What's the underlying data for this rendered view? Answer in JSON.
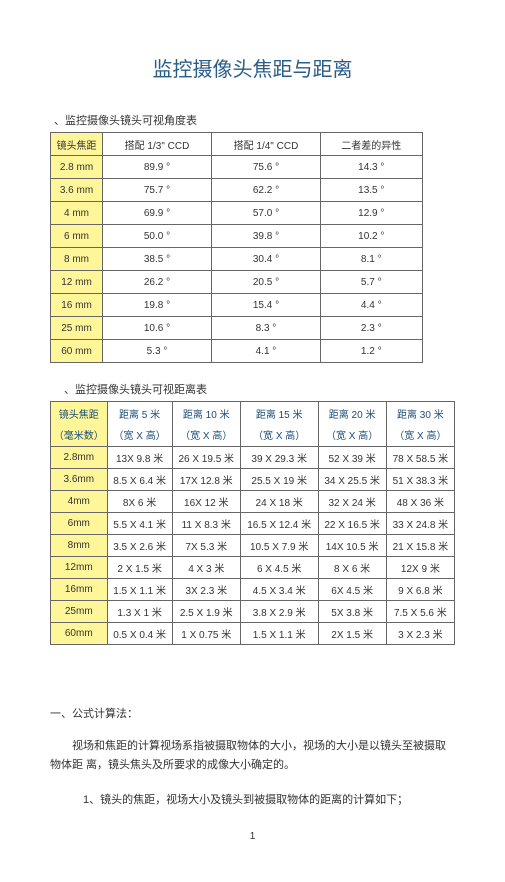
{
  "title": "监控摄像头焦距与距离",
  "caption1": "、监控摄像头镜头可视角度表",
  "table1": {
    "headers": [
      "镜头焦距",
      "搭配 1/3\" CCD",
      "搭配 1/4\" CCD",
      "二者差的异性"
    ],
    "rows": [
      [
        "2.8 mm",
        "89.9 °",
        "75.6 °",
        "14.3 °"
      ],
      [
        "3.6 mm",
        "75.7 °",
        "62.2 °",
        "13.5 °"
      ],
      [
        "4 mm",
        "69.9 °",
        "57.0 °",
        "12.9 °"
      ],
      [
        "6 mm",
        "50.0 °",
        "39.8 °",
        "10.2 °"
      ],
      [
        "8 mm",
        "38.5 °",
        "30.4 °",
        "8.1 °"
      ],
      [
        "12 mm",
        "26.2 °",
        "20.5 °",
        "5.7 °"
      ],
      [
        "16 mm",
        "19.8 °",
        "15.4 °",
        "4.4 °"
      ],
      [
        "25 mm",
        "10.6 °",
        "8.3 °",
        "2.3 °"
      ],
      [
        "60 mm",
        "5.3 °",
        "4.1 °",
        "1.2 °"
      ]
    ]
  },
  "caption2": "、监控摄像头镜头可视距离表",
  "table2": {
    "headers": [
      "镜头焦距\n（毫米数）",
      "距离 5 米\n（宽 X 高）",
      "距离 10 米\n（宽 X 高）",
      "距离 15 米\n（宽 X 高）",
      "距离 20 米\n（宽 X 高）",
      "距离 30 米\n（宽 X 高）"
    ],
    "headerTop": [
      "镜头焦距",
      "距离 5 米",
      "距离 10 米",
      "距离 15 米",
      "距离 20 米",
      "距离 30 米"
    ],
    "headerBot": [
      "（毫米数）",
      "（宽 X 高）",
      "（宽 X 高）",
      "（宽 X 高）",
      "（宽 X 高）",
      "（宽 X 高）"
    ],
    "rows": [
      [
        "2.8mm",
        "13X 9.8 米",
        "26 X 19.5 米",
        "39 X 29.3 米",
        "52 X 39 米",
        "78 X 58.5 米"
      ],
      [
        "3.6mm",
        "8.5 X 6.4 米",
        "17X 12.8 米",
        "25.5 X 19 米",
        "34 X 25.5 米",
        "51 X 38.3 米"
      ],
      [
        "4mm",
        "8X 6 米",
        "16X 12 米",
        "24 X 18 米",
        "32 X 24 米",
        "48 X 36 米"
      ],
      [
        "6mm",
        "5.5 X 4.1 米",
        "11 X 8.3 米",
        "16.5 X 12.4 米",
        "22 X 16.5 米",
        "33 X 24.8 米"
      ],
      [
        "8mm",
        "3.5 X 2.6 米",
        "7X 5.3 米",
        "10.5 X 7.9 米",
        "14X 10.5 米",
        "21 X 15.8 米"
      ],
      [
        "12mm",
        "2 X 1.5 米",
        "4 X 3 米",
        "6 X 4.5 米",
        "8 X 6 米",
        "12X 9 米"
      ],
      [
        "16mm",
        "1.5 X 1.1 米",
        "3X 2.3 米",
        "4.5 X 3.4 米",
        "6X 4.5 米",
        "9 X 6.8 米"
      ],
      [
        "25mm",
        "1.3 X 1 米",
        "2.5 X 1.9 米",
        "3.8 X 2.9 米",
        "5X 3.8 米",
        "7.5 X 5.6 米"
      ],
      [
        "60mm",
        "0.5 X 0.4 米",
        "1 X 0.75 米",
        "1.5 X 1.1 米",
        "2X 1.5 米",
        "3 X 2.3 米"
      ]
    ]
  },
  "section_num": "一、公式计算法：",
  "para1": "视场和焦距的计算视场系指被摄取物体的大小，视场的大小是以镜头至被摄取物体距 离，镜头焦头及所要求的成像大小确定的。",
  "sub1": "1、镜头的焦距，视场大小及镜头到被摄取物体的距离的计算如下；",
  "pagenum": "1"
}
